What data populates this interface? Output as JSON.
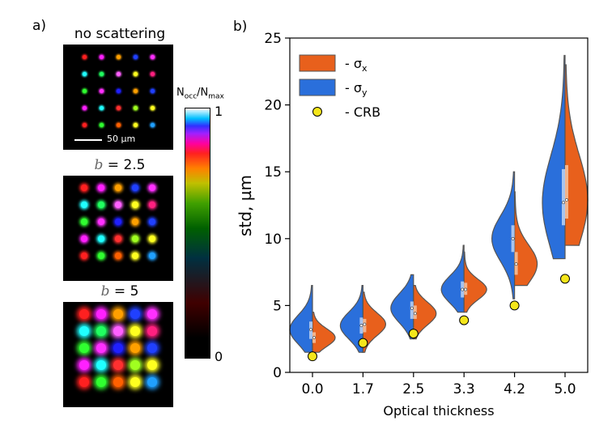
{
  "panel_a": {
    "letter": "a)",
    "images": [
      {
        "title": "no scattering",
        "b_value": ""
      },
      {
        "title": "",
        "b_value": "2.5"
      },
      {
        "title": "",
        "b_value": "5"
      }
    ],
    "b_symbol": "b",
    "equals": "= ",
    "scalebar_label": "50 µm",
    "colorbar": {
      "label_main": "N",
      "label_sub1": "occ",
      "label_mid": "/N",
      "label_sub2": "max",
      "max_tick": "1",
      "min_tick": "0"
    },
    "spot_colors": [
      [
        "#ff2020",
        "#ff20ff",
        "#ffa000",
        "#2040ff",
        "#ff30ff"
      ],
      [
        "#20ffff",
        "#20ff60",
        "#ff60ff",
        "#ffff20",
        "#ff2080"
      ],
      [
        "#30ff30",
        "#ff30ff",
        "#2020ff",
        "#ffa000",
        "#2040ff"
      ],
      [
        "#ff20ff",
        "#20ffff",
        "#ff3030",
        "#a0ff20",
        "#ffff20"
      ],
      [
        "#ff2020",
        "#30ff30",
        "#ff6000",
        "#ffff20",
        "#20a0ff"
      ]
    ]
  },
  "chart_data": {
    "type": "violin",
    "panel_letter": "b)",
    "xlabel": "Optical thickness",
    "ylabel": "std, µm",
    "categories": [
      "0.0",
      "1.7",
      "2.5",
      "3.3",
      "4.2",
      "5.0"
    ],
    "ylim": [
      0,
      25
    ],
    "yticks": [
      "0",
      "5",
      "10",
      "15",
      "20",
      "25"
    ],
    "legend": [
      {
        "symbol": "σ",
        "sub": "x",
        "prefix": "- ",
        "color": "#e8601c"
      },
      {
        "symbol": "σ",
        "sub": "y",
        "prefix": "- ",
        "color": "#2a6fdb"
      },
      {
        "symbol": "CRB",
        "sub": "",
        "prefix": "- ",
        "color": "#f5e61a"
      }
    ],
    "crb": [
      1.2,
      2.2,
      2.9,
      3.9,
      5.0,
      7.0
    ],
    "sigma_x": [
      {
        "min": 1.5,
        "q1": 2.2,
        "median": 2.6,
        "q3": 3.0,
        "max": 4.5
      },
      {
        "min": 1.5,
        "q1": 3.0,
        "median": 3.6,
        "q3": 4.0,
        "max": 6.0
      },
      {
        "min": 2.5,
        "q1": 4.0,
        "median": 4.4,
        "q3": 5.0,
        "max": 6.5
      },
      {
        "min": 4.5,
        "q1": 5.8,
        "median": 6.2,
        "q3": 6.7,
        "max": 9.0
      },
      {
        "min": 6.5,
        "q1": 7.3,
        "median": 8.1,
        "q3": 9.0,
        "max": 13.5
      },
      {
        "min": 9.5,
        "q1": 11.5,
        "median": 12.9,
        "q3": 15.5,
        "max": 23.0
      }
    ],
    "sigma_y": [
      {
        "min": 1.5,
        "q1": 2.5,
        "median": 3.2,
        "q3": 3.8,
        "max": 6.5
      },
      {
        "min": 1.5,
        "q1": 2.9,
        "median": 3.5,
        "q3": 4.1,
        "max": 6.5
      },
      {
        "min": 2.5,
        "q1": 4.0,
        "median": 4.8,
        "q3": 5.3,
        "max": 7.3
      },
      {
        "min": 4.5,
        "q1": 5.6,
        "median": 6.2,
        "q3": 6.8,
        "max": 9.5
      },
      {
        "min": 5.5,
        "q1": 9.0,
        "median": 10.0,
        "q3": 11.0,
        "max": 15.0
      },
      {
        "min": 8.5,
        "q1": 11.0,
        "median": 12.7,
        "q3": 15.2,
        "max": 23.7
      }
    ]
  }
}
